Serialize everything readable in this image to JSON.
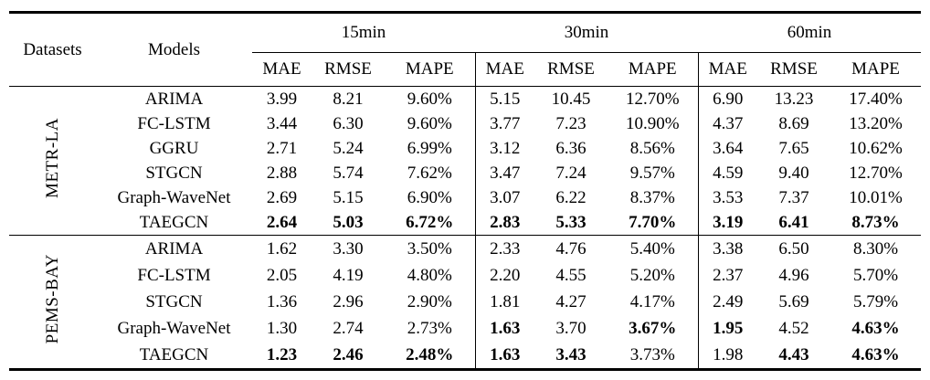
{
  "table": {
    "headers": {
      "datasets": "Datasets",
      "models": "Models",
      "horizons": [
        "15min",
        "30min",
        "60min"
      ],
      "metrics": [
        "MAE",
        "RMSE",
        "MAPE"
      ]
    },
    "sections": [
      {
        "dataset": "METR-LA",
        "rows": [
          {
            "model": "ARIMA",
            "values": [
              "3.99",
              "8.21",
              "9.60%",
              "5.15",
              "10.45",
              "12.70%",
              "6.90",
              "13.23",
              "17.40%"
            ],
            "bold": []
          },
          {
            "model": "FC-LSTM",
            "values": [
              "3.44",
              "6.30",
              "9.60%",
              "3.77",
              "7.23",
              "10.90%",
              "4.37",
              "8.69",
              "13.20%"
            ],
            "bold": []
          },
          {
            "model": "GGRU",
            "values": [
              "2.71",
              "5.24",
              "6.99%",
              "3.12",
              "6.36",
              "8.56%",
              "3.64",
              "7.65",
              "10.62%"
            ],
            "bold": []
          },
          {
            "model": "STGCN",
            "values": [
              "2.88",
              "5.74",
              "7.62%",
              "3.47",
              "7.24",
              "9.57%",
              "4.59",
              "9.40",
              "12.70%"
            ],
            "bold": []
          },
          {
            "model": "Graph-WaveNet",
            "values": [
              "2.69",
              "5.15",
              "6.90%",
              "3.07",
              "6.22",
              "8.37%",
              "3.53",
              "7.37",
              "10.01%"
            ],
            "bold": []
          },
          {
            "model": "TAEGCN",
            "values": [
              "2.64",
              "5.03",
              "6.72%",
              "2.83",
              "5.33",
              "7.70%",
              "3.19",
              "6.41",
              "8.73%"
            ],
            "bold": [
              0,
              1,
              2,
              3,
              4,
              5,
              6,
              7,
              8
            ]
          }
        ]
      },
      {
        "dataset": "PEMS-BAY",
        "rows": [
          {
            "model": "ARIMA",
            "values": [
              "1.62",
              "3.30",
              "3.50%",
              "2.33",
              "4.76",
              "5.40%",
              "3.38",
              "6.50",
              "8.30%"
            ],
            "bold": []
          },
          {
            "model": "FC-LSTM",
            "values": [
              "2.05",
              "4.19",
              "4.80%",
              "2.20",
              "4.55",
              "5.20%",
              "2.37",
              "4.96",
              "5.70%"
            ],
            "bold": []
          },
          {
            "model": "STGCN",
            "values": [
              "1.36",
              "2.96",
              "2.90%",
              "1.81",
              "4.27",
              "4.17%",
              "2.49",
              "5.69",
              "5.79%"
            ],
            "bold": []
          },
          {
            "model": "Graph-WaveNet",
            "values": [
              "1.30",
              "2.74",
              "2.73%",
              "1.63",
              "3.70",
              "3.67%",
              "1.95",
              "4.52",
              "4.63%"
            ],
            "bold": [
              3,
              5,
              6,
              8
            ]
          },
          {
            "model": "TAEGCN",
            "values": [
              "1.23",
              "2.46",
              "2.48%",
              "1.63",
              "3.43",
              "3.73%",
              "1.98",
              "4.43",
              "4.63%"
            ],
            "bold": [
              0,
              1,
              2,
              3,
              4,
              7,
              8
            ]
          }
        ]
      }
    ]
  }
}
